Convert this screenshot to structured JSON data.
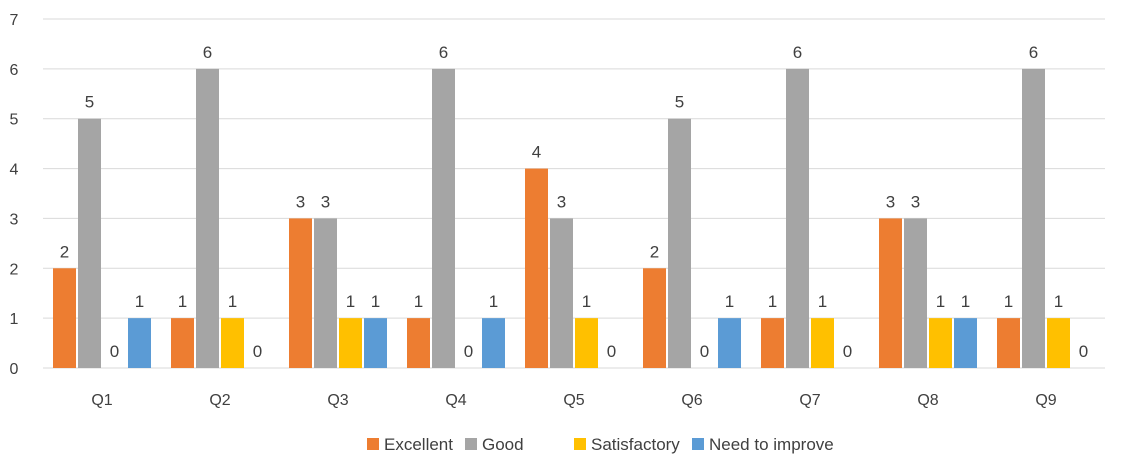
{
  "chart_data": {
    "type": "bar",
    "title": "",
    "xlabel": "",
    "ylabel": "",
    "ylim": [
      0,
      7
    ],
    "yticks": [
      0,
      1,
      2,
      3,
      4,
      5,
      6,
      7
    ],
    "grid": true,
    "legend_position": "bottom",
    "categories": [
      "Q1",
      "Q2",
      "Q3",
      "Q4",
      "Q5",
      "Q6",
      "Q7",
      "Q8",
      "Q9"
    ],
    "series": [
      {
        "name": "Excellent",
        "color": "#ed7d31",
        "values": [
          2,
          1,
          3,
          1,
          4,
          2,
          1,
          3,
          1
        ]
      },
      {
        "name": "Good",
        "color": "#a5a5a5",
        "values": [
          5,
          6,
          3,
          6,
          3,
          5,
          6,
          3,
          6
        ]
      },
      {
        "name": "Satisfactory",
        "color": "#ffc000",
        "values": [
          0,
          1,
          1,
          0,
          1,
          0,
          1,
          1,
          1
        ]
      },
      {
        "name": "Need to improve",
        "color": "#5b9bd5",
        "values": [
          1,
          0,
          1,
          1,
          0,
          1,
          0,
          1,
          0
        ]
      }
    ]
  }
}
